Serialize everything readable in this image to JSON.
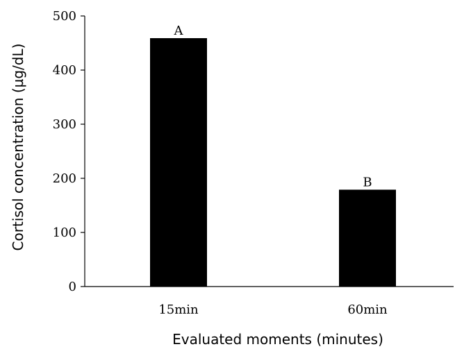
{
  "chart_data": {
    "type": "bar",
    "title": "",
    "xlabel": "Evaluated moments (minutes)",
    "ylabel": "Cortisol concentration (µg/dL)",
    "categories": [
      "15min",
      "60min"
    ],
    "values": [
      459,
      179
    ],
    "bar_labels": [
      "A",
      "B"
    ],
    "ylim": [
      0,
      500
    ],
    "yticks": [
      0,
      100,
      200,
      300,
      400,
      500
    ],
    "grid": false,
    "legend": "none",
    "bar_color": "#000000"
  }
}
